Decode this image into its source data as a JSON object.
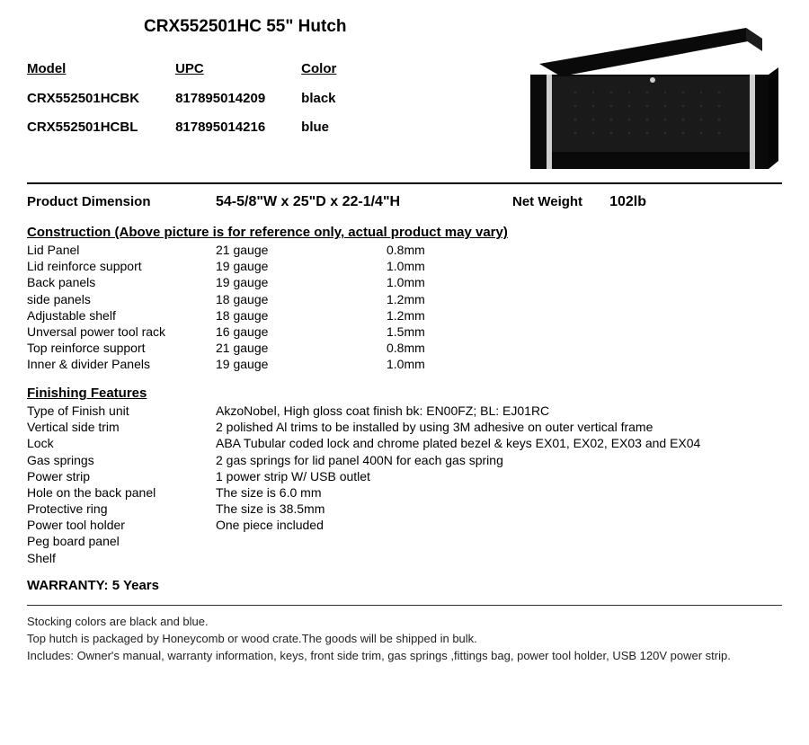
{
  "page": {
    "background_color": "#ffffff",
    "text_color": "#000000",
    "font_family": "Arial"
  },
  "title": "CRX552501HC 55\"  Hutch",
  "variants": {
    "headers": [
      "Model",
      "UPC",
      "Color"
    ],
    "rows": [
      [
        "CRX552501HCBK",
        "817895014209",
        "black"
      ],
      [
        "CRX552501HCBL",
        "817895014216",
        "blue"
      ]
    ]
  },
  "product_image": {
    "description": "black-tool-hutch-open-lid",
    "body_color": "#0a0a0a",
    "trim_color": "#cfcfcf",
    "interior_color": "#1a1a1a"
  },
  "dimension": {
    "label": "Product Dimension",
    "value": "54-5/8\"W x 25\"D x 22-1/4\"H",
    "weight_label": "Net Weight",
    "weight_value": "102lb"
  },
  "construction": {
    "header": "Construction (Above picture is for reference only, actual product may vary)",
    "rows": [
      [
        "Lid Panel",
        "21 gauge",
        "0.8mm"
      ],
      [
        "Lid  reinforce support",
        "19 gauge",
        "1.0mm"
      ],
      [
        "Back  panels",
        "19 gauge",
        "1.0mm"
      ],
      [
        "side panels",
        "18 gauge",
        "1.2mm"
      ],
      [
        "Adjustable shelf",
        "18 gauge",
        "1.2mm"
      ],
      [
        "Unversal power tool rack",
        "16 gauge",
        "1.5mm"
      ],
      [
        "Top reinforce support",
        "21 gauge",
        "0.8mm"
      ],
      [
        "Inner & divider Panels",
        "19 gauge",
        "1.0mm"
      ]
    ]
  },
  "finishing": {
    "header": "Finishing Features",
    "rows": [
      [
        "Type of Finish unit",
        "AkzoNobel, High gloss coat finish bk: EN00FZ; BL: EJ01RC"
      ],
      [
        "Vertical side trim",
        "2 polished Al trims to be installed by using 3M adhesive on outer vertical frame"
      ],
      [
        "Lock",
        "ABA Tubular coded lock and chrome plated bezel & keys EX01, EX02, EX03 and EX04"
      ],
      [
        "Gas springs",
        "2 gas springs for lid panel   400N for each gas spring"
      ],
      [
        "Power strip",
        "1 power strip W/ USB outlet"
      ],
      [
        "Hole on the back panel",
        "The size is 6.0 mm"
      ],
      [
        "Protective ring",
        "The size is 38.5mm"
      ],
      [
        "Power tool holder",
        "One piece included"
      ],
      [
        "Peg board panel",
        ""
      ],
      [
        "Shelf",
        ""
      ]
    ]
  },
  "warranty": "WARRANTY: 5 Years",
  "notes": [
    "Stocking colors are black and blue.",
    "Top hutch is packaged by Honeycomb or wood crate.The goods will be shipped in bulk.",
    "Includes: Owner's manual, warranty information, keys, front side trim, gas springs ,fittings bag, power tool holder, USB 120V power strip."
  ]
}
